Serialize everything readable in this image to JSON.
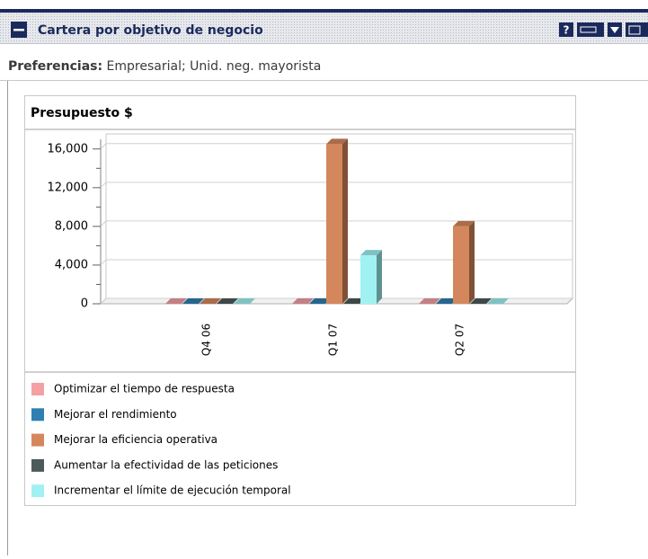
{
  "header": {
    "title": "Cartera por objetivo de negocio",
    "help_icon": "?"
  },
  "preferences": {
    "label": "Preferencias:",
    "value": "Empresarial; Unid. neg. mayorista"
  },
  "chart_data": {
    "type": "bar",
    "title": "Presupuesto $",
    "categories": [
      "Q4 06",
      "Q1 07",
      "Q2 07"
    ],
    "series": [
      {
        "name": "Optimizar el tiempo de respuesta",
        "color": "#f4a0a4",
        "values": [
          0,
          0,
          0
        ]
      },
      {
        "name": "Mejorar el rendimiento",
        "color": "#2f7fb2",
        "values": [
          0,
          0,
          0
        ]
      },
      {
        "name": "Mejorar la eficiencia operativa",
        "color": "#d4875c",
        "values": [
          0,
          16500,
          8000
        ]
      },
      {
        "name": "Aumentar la efectividad de las peticiones",
        "color": "#4d5a5a",
        "values": [
          0,
          0,
          0
        ]
      },
      {
        "name": "Incrementar el límite de ejecución temporal",
        "color": "#a0f2f2",
        "values": [
          0,
          5000,
          0
        ]
      }
    ],
    "ylim": [
      0,
      17000
    ],
    "yticks": [
      0,
      {
        "value": 4000,
        "label": "4,000"
      },
      {
        "value": 8000,
        "label": "8,000"
      },
      {
        "value": 12000,
        "label": "12,000"
      },
      {
        "value": 16000,
        "label": "16,000"
      }
    ],
    "grid": true,
    "legend": "bottom"
  }
}
